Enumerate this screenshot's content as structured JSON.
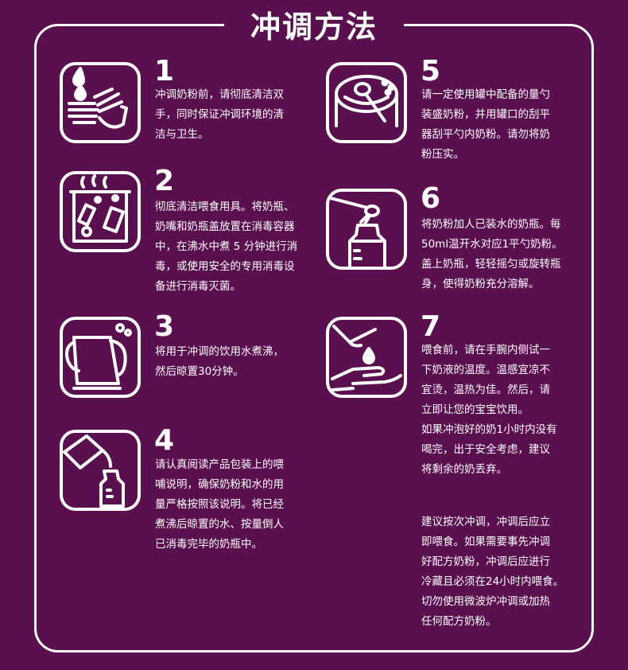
{
  "title": "冲调方法",
  "steps": [
    {
      "num": "1",
      "icon": "hand-washing-icon",
      "text": "冲调奶粉前，请彻底清洁双\n手，同时保证冲调环境的清\n洁与卫生。"
    },
    {
      "num": "2",
      "icon": "sterilizing-pot-icon",
      "text": "彻底清洁喂食用具。将奶瓶、\n奶嘴和奶瓶盖放置在消毒容器\n中，在沸水中煮 5 分钟进行消\n毒，或使用安全的专用消毒设\n备进行消毒灭菌。"
    },
    {
      "num": "3",
      "icon": "kettle-icon",
      "text": "将用于冲调的饮用水煮沸，\n然后晾置30分钟。"
    },
    {
      "num": "4",
      "icon": "pour-water-bottle-icon",
      "text": "请认真阅读产品包装上的喂\n哺说明，确保奶粉和水的用\n量严格按照该说明。将已经\n煮沸后晾置的水、按量倒人\n已消毒完毕的奶瓶中。"
    },
    {
      "num": "5",
      "icon": "scoop-leveling-icon",
      "text": "请一定使用罐中配备的量勺\n装盛奶粉，并用罐口的刮平\n器刮平勺内奶粉。请勿将奶\n粉压实。"
    },
    {
      "num": "6",
      "icon": "scoop-into-bottle-icon",
      "text": " 将奶粉加人已装水的奶瓶。每\n50ml温开水对应1平勺奶粉。\n盖上奶瓶，轻轻摇匀或旋转瓶\n身，使得奶粉充分溶解。"
    },
    {
      "num": "7",
      "icon": "wrist-test-icon",
      "text": "喂食前，请在手腕内侧试一\n下奶液的温度。温感宜凉不\n宜烫，温热为佳。然后，请\n立即让您的宝宝饮用。\n如果冲泡好的奶1小时内没有\n喝完，出于安全考虑，建议\n将剩余的奶丢弃。"
    }
  ],
  "note": "建议按次冲调，冲调后应立\n即喂食。如果需要事先冲调\n好配方奶粉，冲调后应进行\n冷藏且必须在24小时内喂食。\n切勿使用微波炉冲调或加热\n任何配方奶粉。",
  "colors": {
    "background": "#5a0f4e",
    "foreground": "#ffffff"
  }
}
